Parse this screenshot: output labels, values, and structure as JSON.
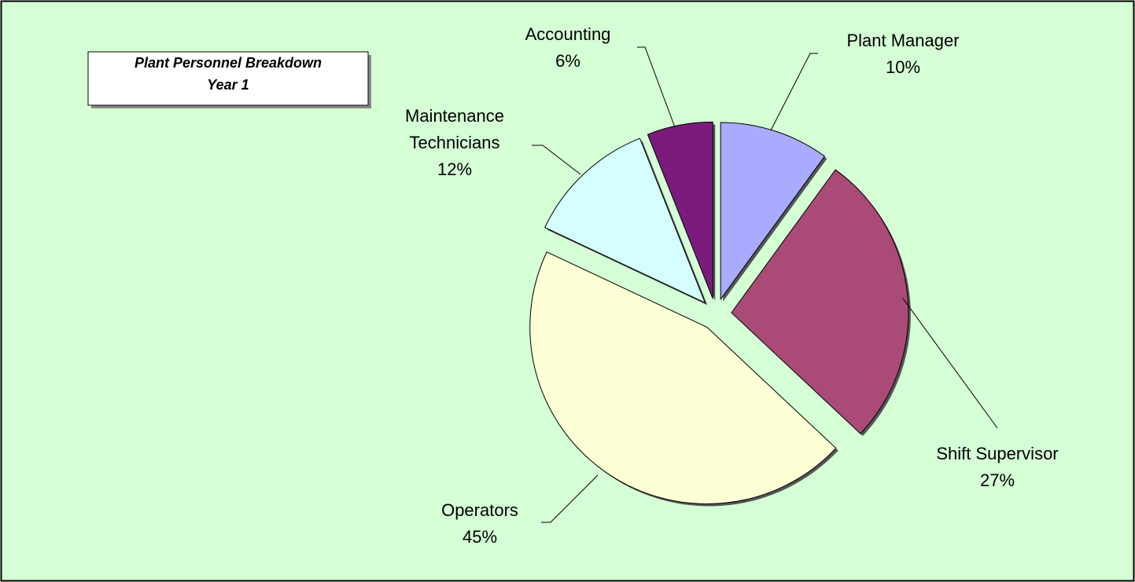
{
  "chart_data": {
    "type": "pie",
    "title": "Plant Personnel Breakdown",
    "subtitle": "Year 1",
    "categories": [
      "Plant Manager",
      "Shift Supervisor",
      "Operators",
      "Maintenance Technicians",
      "Accounting"
    ],
    "values": [
      10,
      27,
      45,
      12,
      6
    ],
    "value_labels": [
      "10%",
      "27%",
      "45%",
      "12%",
      "6%"
    ],
    "colors": [
      "#aaaaff",
      "#aa4a77",
      "#ffffd5",
      "#d5ffff",
      "#7a1a7a"
    ]
  }
}
